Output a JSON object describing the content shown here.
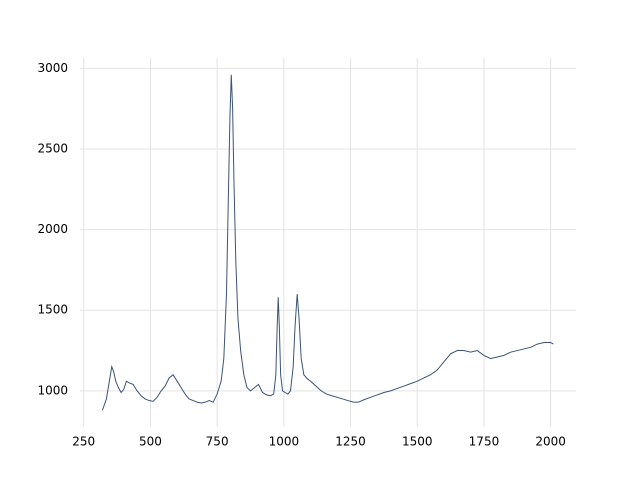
{
  "chart_data": {
    "type": "line",
    "x": [
      320,
      335,
      345,
      355,
      362,
      370,
      380,
      390,
      400,
      410,
      420,
      435,
      450,
      465,
      480,
      495,
      510,
      525,
      540,
      555,
      570,
      585,
      600,
      615,
      630,
      645,
      660,
      675,
      690,
      705,
      720,
      735,
      750,
      765,
      775,
      785,
      792,
      798,
      803,
      808,
      813,
      820,
      828,
      838,
      850,
      862,
      875,
      890,
      905,
      920,
      935,
      950,
      962,
      970,
      975,
      979,
      983,
      988,
      995,
      1005,
      1015,
      1025,
      1035,
      1042,
      1050,
      1057,
      1065,
      1075,
      1085,
      1100,
      1120,
      1140,
      1160,
      1180,
      1200,
      1220,
      1240,
      1260,
      1280,
      1300,
      1325,
      1350,
      1375,
      1400,
      1425,
      1450,
      1475,
      1500,
      1525,
      1550,
      1575,
      1600,
      1625,
      1650,
      1675,
      1700,
      1725,
      1750,
      1775,
      1800,
      1825,
      1850,
      1875,
      1900,
      1925,
      1950,
      1975,
      2000,
      2010
    ],
    "values": [
      880,
      950,
      1050,
      1150,
      1120,
      1060,
      1020,
      990,
      1010,
      1060,
      1050,
      1040,
      1000,
      970,
      950,
      940,
      935,
      960,
      1000,
      1030,
      1080,
      1100,
      1060,
      1020,
      980,
      950,
      940,
      930,
      925,
      930,
      940,
      930,
      980,
      1060,
      1200,
      1600,
      2200,
      2700,
      2960,
      2750,
      2300,
      1800,
      1450,
      1250,
      1100,
      1020,
      1000,
      1020,
      1040,
      990,
      975,
      970,
      980,
      1100,
      1400,
      1580,
      1400,
      1100,
      1000,
      990,
      980,
      1000,
      1150,
      1400,
      1600,
      1450,
      1200,
      1100,
      1080,
      1060,
      1030,
      1000,
      980,
      970,
      960,
      950,
      940,
      930,
      930,
      945,
      960,
      975,
      990,
      1000,
      1015,
      1030,
      1045,
      1060,
      1080,
      1100,
      1130,
      1180,
      1230,
      1250,
      1250,
      1240,
      1250,
      1220,
      1200,
      1210,
      1220,
      1240,
      1250,
      1260,
      1270,
      1290,
      1300,
      1300,
      1290
    ],
    "color": "#3b5375",
    "xlim": [
      236,
      2095
    ],
    "ylim": [
      776,
      3064
    ],
    "xticks": [
      250,
      500,
      750,
      1000,
      1250,
      1500,
      1750,
      2000
    ],
    "yticks": [
      1000,
      1500,
      2000,
      2500,
      3000
    ],
    "grid": true
  }
}
